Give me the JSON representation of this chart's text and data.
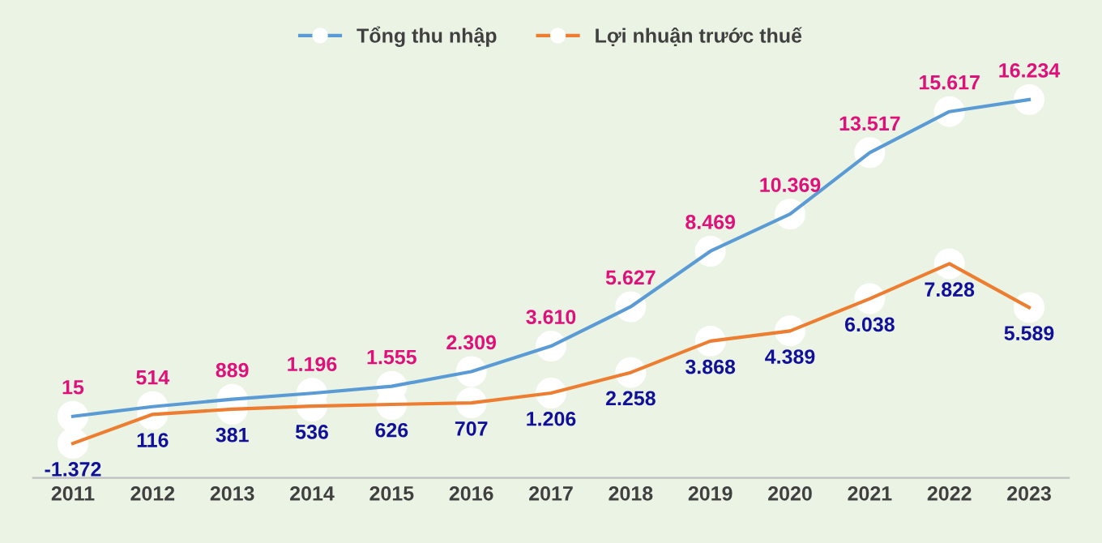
{
  "chart_data": {
    "type": "line",
    "categories": [
      "2011",
      "2012",
      "2013",
      "2014",
      "2015",
      "2016",
      "2017",
      "2018",
      "2019",
      "2020",
      "2021",
      "2022",
      "2023"
    ],
    "series": [
      {
        "name": "Tổng thu nhập",
        "color": "#5b9bd5",
        "values": [
          15,
          514,
          889,
          1196,
          1555,
          2309,
          3610,
          5627,
          8469,
          10369,
          13517,
          15617,
          16234
        ],
        "value_labels": [
          "15",
          "514",
          "889",
          "1.196",
          "1.555",
          "2.309",
          "3.610",
          "5.627",
          "8.469",
          "10.369",
          "13.517",
          "15.617",
          "16.234"
        ]
      },
      {
        "name": "Lợi nhuận trước thuế",
        "color": "#ed7d31",
        "values": [
          -1372,
          116,
          381,
          536,
          626,
          707,
          1206,
          2258,
          3868,
          4389,
          6038,
          7828,
          5589
        ],
        "value_labels": [
          "-1.372",
          "116",
          "381",
          "536",
          "626",
          "707",
          "1.206",
          "2.258",
          "3.868",
          "4.389",
          "6.038",
          "7.828",
          "5.589"
        ]
      }
    ],
    "tick_labels": "x",
    "marker": "circle",
    "legend": "top",
    "grid": false
  }
}
